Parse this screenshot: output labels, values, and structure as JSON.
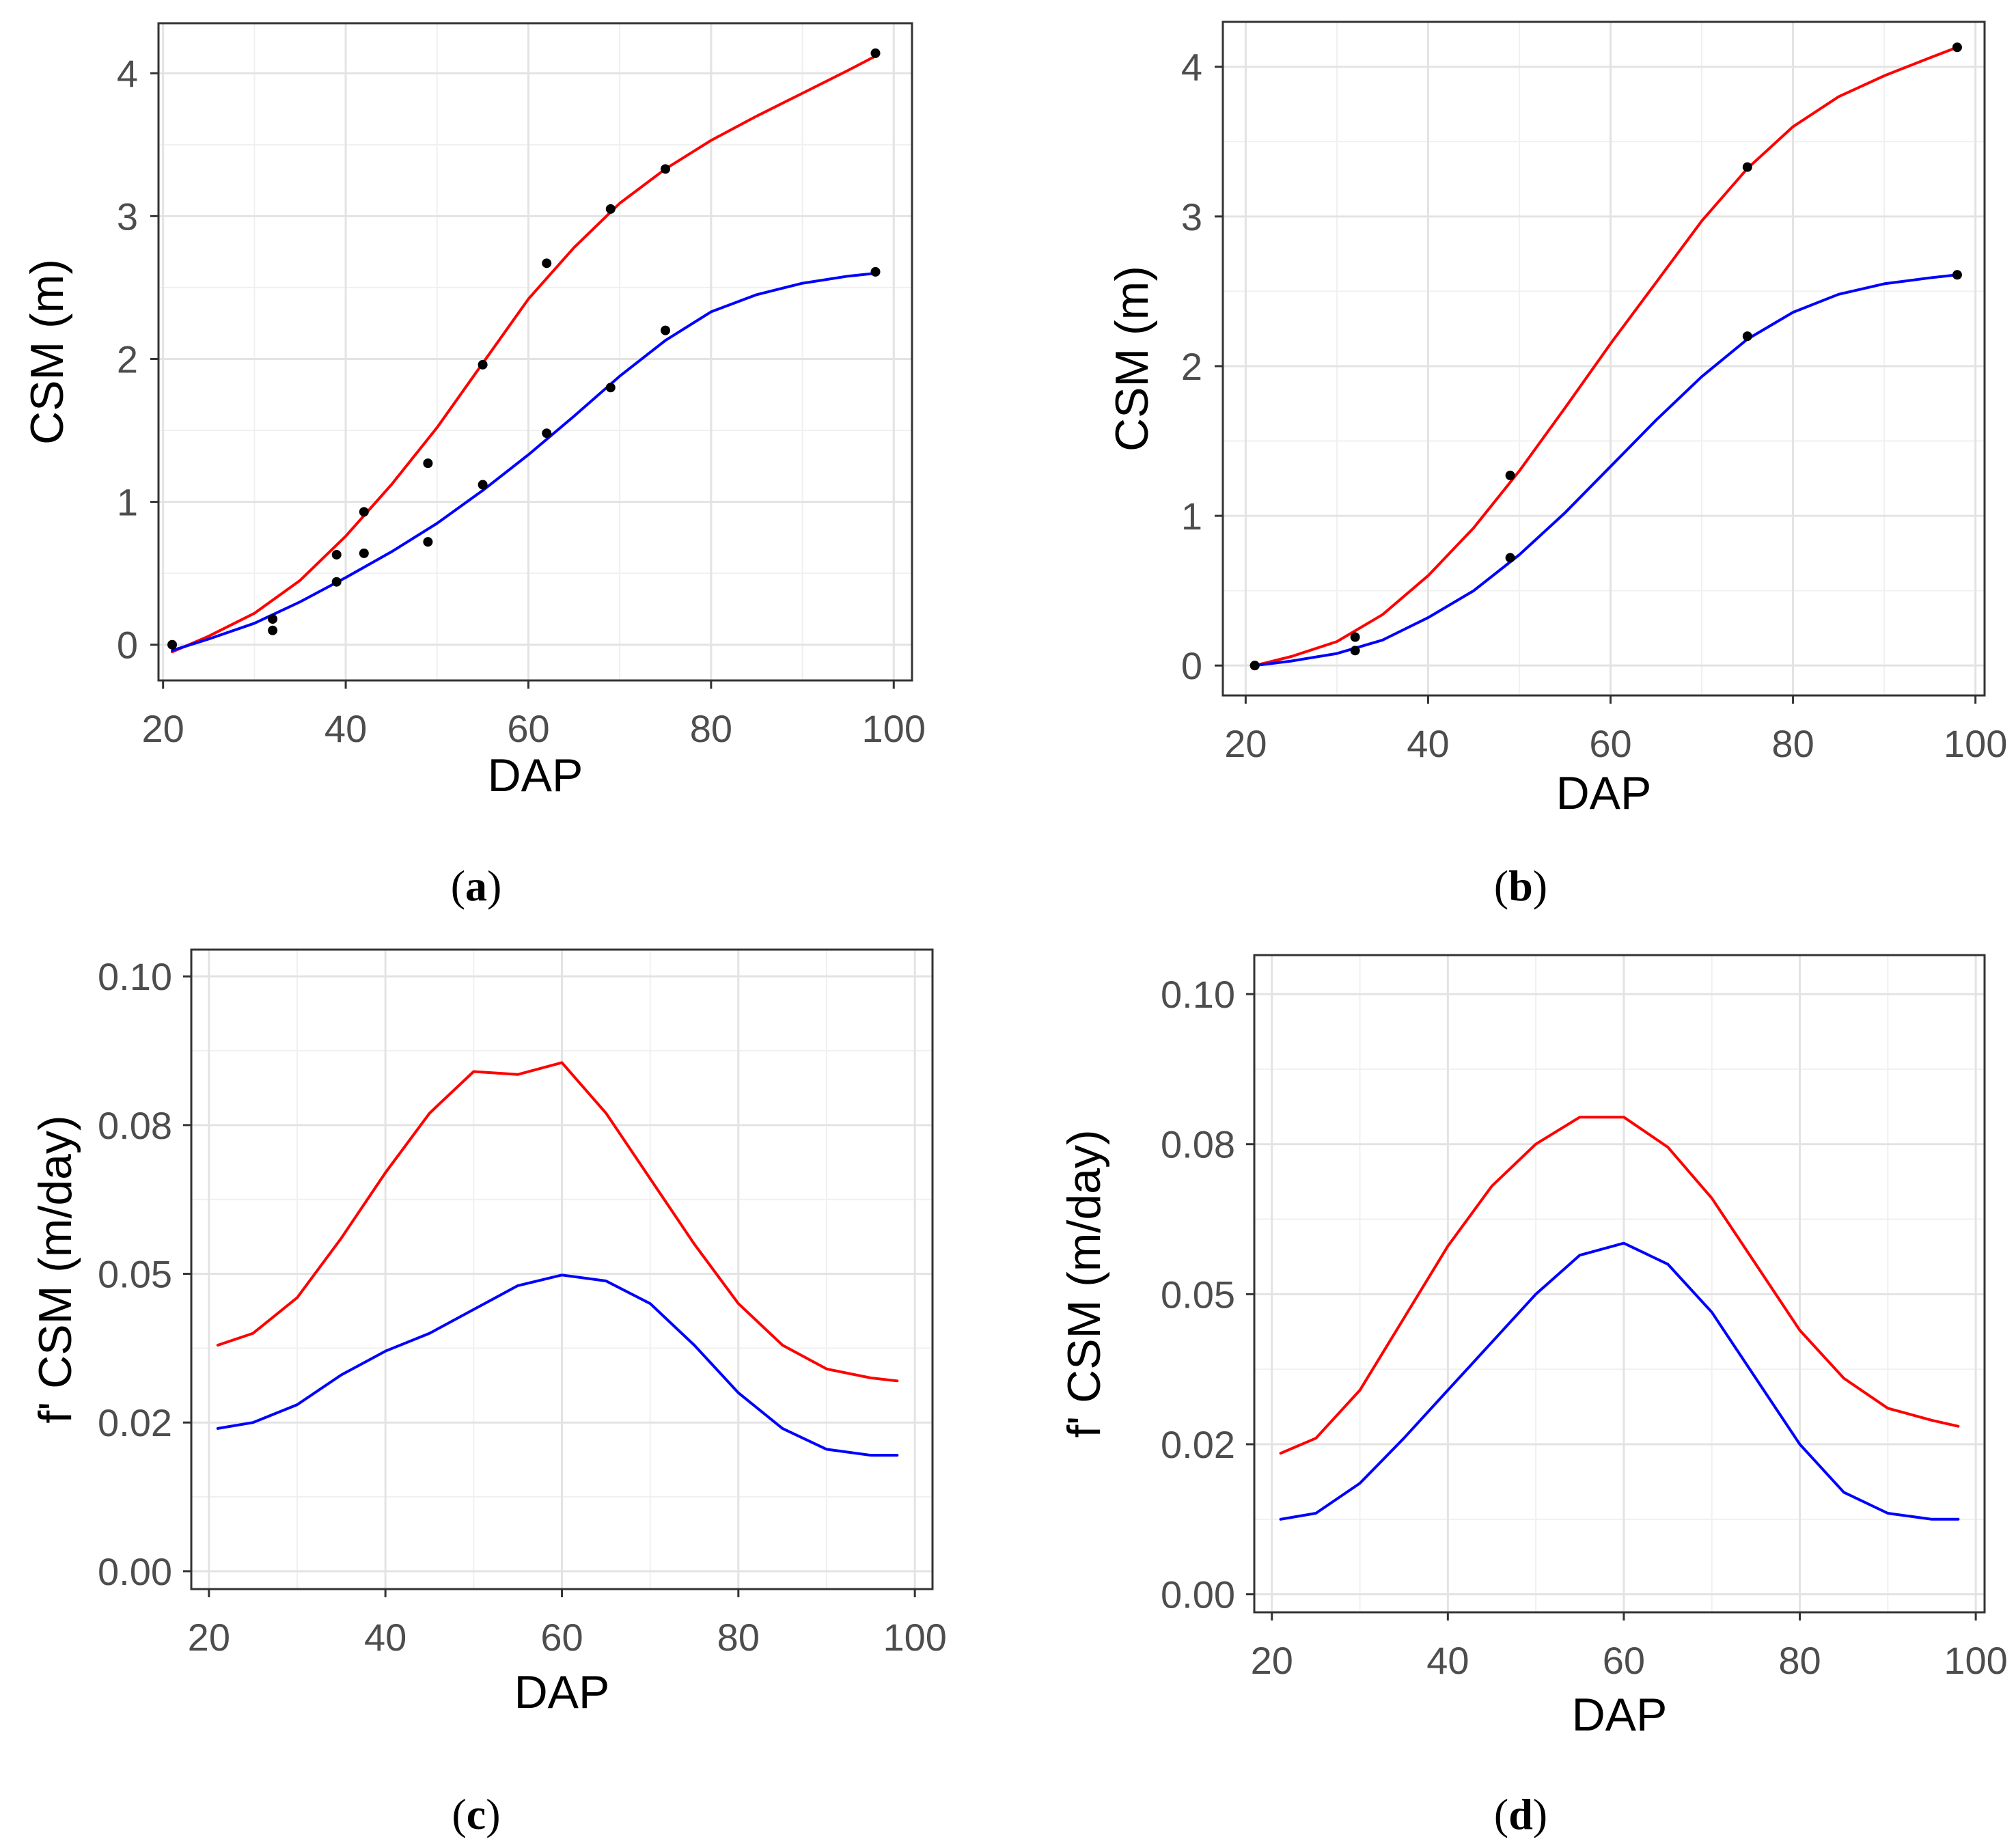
{
  "chart_data": [
    {
      "id": "a",
      "type": "line",
      "caption": "a",
      "xlabel": "DAP",
      "ylabel": "CSM (m)",
      "xlim": [
        19.5,
        102
      ],
      "ylim": [
        -0.25,
        4.35
      ],
      "xticks": [
        20,
        40,
        60,
        80,
        100
      ],
      "yticks": [
        0,
        1,
        2,
        3,
        4
      ],
      "ytick_labels": [
        "0",
        "1",
        "2",
        "3",
        "4"
      ],
      "grid": true,
      "series": [
        {
          "name": "red-curve",
          "color": "#ff0000",
          "x": [
            21,
            25,
            30,
            35,
            40,
            45,
            50,
            55,
            60,
            65,
            70,
            75,
            80,
            85,
            90,
            95,
            98
          ],
          "y": [
            -0.05,
            0.06,
            0.22,
            0.45,
            0.76,
            1.12,
            1.52,
            1.97,
            2.42,
            2.78,
            3.09,
            3.33,
            3.53,
            3.7,
            3.86,
            4.02,
            4.12
          ],
          "points_x": [
            21,
            32,
            39,
            42,
            49,
            55,
            62,
            69,
            75,
            98
          ],
          "points_y": [
            0.0,
            0.18,
            0.63,
            0.93,
            1.27,
            1.96,
            2.67,
            3.05,
            3.33,
            4.14
          ]
        },
        {
          "name": "blue-curve",
          "color": "#0000ff",
          "x": [
            21,
            25,
            30,
            35,
            40,
            45,
            50,
            55,
            60,
            65,
            70,
            75,
            80,
            85,
            90,
            95,
            98
          ],
          "y": [
            -0.04,
            0.04,
            0.15,
            0.3,
            0.47,
            0.65,
            0.85,
            1.08,
            1.33,
            1.6,
            1.88,
            2.13,
            2.33,
            2.45,
            2.53,
            2.58,
            2.6
          ],
          "points_x": [
            32,
            39,
            42,
            49,
            55,
            62,
            69,
            75,
            98
          ],
          "points_y": [
            0.1,
            0.44,
            0.64,
            0.72,
            1.12,
            1.48,
            1.8,
            2.2,
            2.61
          ]
        }
      ]
    },
    {
      "id": "b",
      "type": "line",
      "caption": "b",
      "xlabel": "DAP",
      "ylabel": "CSM (m)",
      "xlim": [
        17.5,
        101
      ],
      "ylim": [
        -0.2,
        4.3
      ],
      "xticks": [
        20,
        40,
        60,
        80,
        100
      ],
      "yticks": [
        0,
        1,
        2,
        3,
        4
      ],
      "ytick_labels": [
        "0",
        "1",
        "2",
        "3",
        "4"
      ],
      "grid": true,
      "series": [
        {
          "name": "red-curve",
          "color": "#ff0000",
          "x": [
            21,
            25,
            30,
            35,
            40,
            45,
            50,
            55,
            60,
            65,
            70,
            75,
            80,
            85,
            90,
            95,
            98
          ],
          "y": [
            0.0,
            0.06,
            0.16,
            0.34,
            0.6,
            0.92,
            1.3,
            1.72,
            2.15,
            2.56,
            2.97,
            3.32,
            3.6,
            3.8,
            3.94,
            4.06,
            4.13
          ],
          "points_x": [
            21,
            32,
            49,
            75,
            98
          ],
          "points_y": [
            0.0,
            0.19,
            1.27,
            3.33,
            4.13
          ]
        },
        {
          "name": "blue-curve",
          "color": "#0000ff",
          "x": [
            21,
            25,
            30,
            35,
            40,
            45,
            50,
            55,
            60,
            65,
            70,
            75,
            80,
            85,
            90,
            95,
            98
          ],
          "y": [
            0.0,
            0.03,
            0.08,
            0.17,
            0.32,
            0.5,
            0.74,
            1.02,
            1.33,
            1.64,
            1.93,
            2.18,
            2.36,
            2.48,
            2.55,
            2.59,
            2.61
          ],
          "points_x": [
            21,
            32,
            49,
            75,
            98
          ],
          "points_y": [
            0.0,
            0.1,
            0.72,
            2.2,
            2.61
          ]
        }
      ]
    },
    {
      "id": "c",
      "type": "line",
      "caption": "c",
      "xlabel": "DAP",
      "ylabel": "f' CSM (m/day)",
      "xlim": [
        18,
        102
      ],
      "ylim": [
        -0.003,
        0.1045
      ],
      "xticks": [
        20,
        40,
        60,
        80,
        100
      ],
      "yticks": [
        0.0,
        0.025,
        0.05,
        0.075,
        0.1
      ],
      "ytick_labels": [
        "0.00",
        "0.02",
        "0.05",
        "0.08",
        "0.10"
      ],
      "grid": true,
      "series": [
        {
          "name": "red-curve",
          "color": "#ff0000",
          "x": [
            21,
            25,
            30,
            35,
            40,
            45,
            50,
            55,
            60,
            65,
            70,
            75,
            80,
            85,
            90,
            95,
            98
          ],
          "y": [
            0.038,
            0.04,
            0.046,
            0.056,
            0.067,
            0.077,
            0.084,
            0.0835,
            0.0855,
            0.077,
            0.066,
            0.055,
            0.045,
            0.038,
            0.034,
            0.0325,
            0.032
          ],
          "points_x": [],
          "points_y": []
        },
        {
          "name": "blue-curve",
          "color": "#0000ff",
          "x": [
            21,
            25,
            30,
            35,
            40,
            45,
            50,
            55,
            60,
            65,
            70,
            75,
            80,
            85,
            90,
            95,
            98
          ],
          "y": [
            0.024,
            0.025,
            0.028,
            0.033,
            0.037,
            0.04,
            0.044,
            0.048,
            0.0498,
            0.0488,
            0.045,
            0.038,
            0.03,
            0.024,
            0.0205,
            0.0195,
            0.0195
          ],
          "points_x": [],
          "points_y": []
        }
      ]
    },
    {
      "id": "d",
      "type": "line",
      "caption": "d",
      "xlabel": "DAP",
      "ylabel": "f' CSM (m/day)",
      "xlim": [
        18,
        101
      ],
      "ylim": [
        -0.003,
        0.1065
      ],
      "xticks": [
        20,
        40,
        60,
        80,
        100
      ],
      "yticks": [
        0.0,
        0.025,
        0.05,
        0.075,
        0.1
      ],
      "ytick_labels": [
        "0.00",
        "0.02",
        "0.05",
        "0.08",
        "0.10"
      ],
      "grid": true,
      "series": [
        {
          "name": "red-curve",
          "color": "#ff0000",
          "x": [
            21,
            25,
            30,
            35,
            40,
            45,
            50,
            55,
            60,
            65,
            70,
            75,
            80,
            85,
            90,
            95,
            98
          ],
          "y": [
            0.0235,
            0.026,
            0.034,
            0.046,
            0.058,
            0.068,
            0.075,
            0.0795,
            0.0795,
            0.0745,
            0.066,
            0.055,
            0.044,
            0.036,
            0.031,
            0.029,
            0.028
          ],
          "points_x": [],
          "points_y": []
        },
        {
          "name": "blue-curve",
          "color": "#0000ff",
          "x": [
            21,
            25,
            30,
            35,
            40,
            45,
            50,
            55,
            60,
            65,
            70,
            75,
            80,
            85,
            90,
            95,
            98
          ],
          "y": [
            0.0125,
            0.0135,
            0.0185,
            0.026,
            0.034,
            0.042,
            0.05,
            0.0565,
            0.0585,
            0.055,
            0.047,
            0.036,
            0.025,
            0.017,
            0.0135,
            0.0125,
            0.0125
          ],
          "points_x": [],
          "points_y": []
        }
      ]
    }
  ]
}
